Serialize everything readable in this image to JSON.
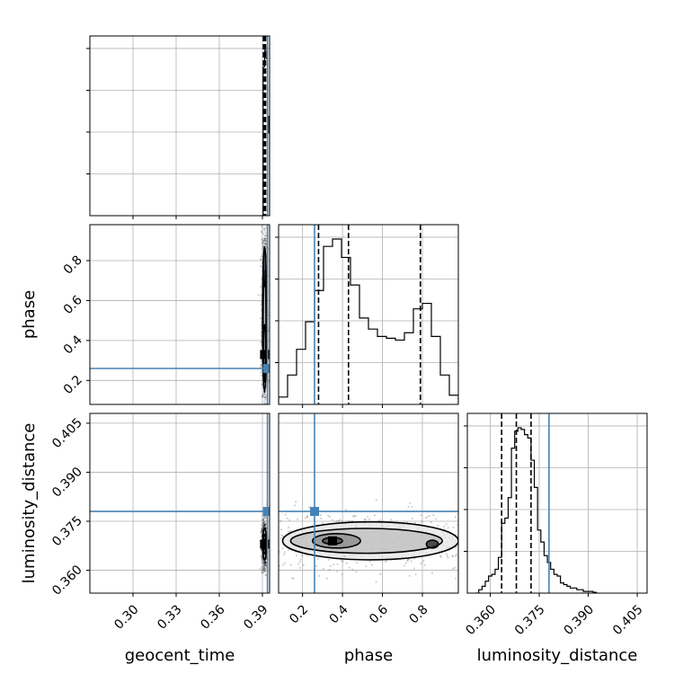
{
  "chart_data": {
    "type": "corner",
    "parameters": [
      "geocent_time",
      "phase",
      "luminosity_distance"
    ],
    "truth": {
      "geocent_time": 0.3935,
      "phase": 0.26,
      "luminosity_distance": 0.378
    },
    "axes": {
      "geocent_time": {
        "lim": [
          0.27,
          0.395
        ],
        "ticks": [
          0.3,
          0.33,
          0.36,
          0.39
        ],
        "tick_labels": [
          "0.30",
          "0.33",
          "0.36",
          "0.39"
        ]
      },
      "phase": {
        "lim": [
          0.08,
          0.98
        ],
        "ticks": [
          0.2,
          0.4,
          0.6,
          0.8
        ],
        "tick_labels": [
          "0.2",
          "0.4",
          "0.6",
          "0.8"
        ]
      },
      "luminosity_distance": {
        "lim": [
          0.353,
          0.408
        ],
        "ticks": [
          0.36,
          0.375,
          0.39,
          0.405
        ],
        "tick_labels": [
          "0.360",
          "0.375",
          "0.390",
          "0.405"
        ]
      }
    },
    "diagonal": [
      {
        "parameter": "geocent_time",
        "bin_edges": [
          0.3895,
          0.3905,
          0.3915,
          0.3925,
          0.3935,
          0.3945,
          0.395
        ],
        "counts": [
          0.0,
          0.9,
          1.0,
          0.95,
          0.6,
          0.5
        ],
        "quantiles": [
          0.3907,
          0.3915,
          0.3922
        ]
      },
      {
        "parameter": "phase",
        "bin_edges": [
          0.08,
          0.125,
          0.17,
          0.215,
          0.26,
          0.305,
          0.35,
          0.395,
          0.44,
          0.485,
          0.53,
          0.575,
          0.62,
          0.665,
          0.71,
          0.755,
          0.8,
          0.845,
          0.89,
          0.935,
          0.98
        ],
        "counts": [
          0.04,
          0.16,
          0.3,
          0.45,
          0.62,
          0.86,
          0.9,
          0.8,
          0.65,
          0.47,
          0.41,
          0.37,
          0.36,
          0.35,
          0.39,
          0.52,
          0.55,
          0.37,
          0.16,
          0.05
        ],
        "quantiles": [
          0.28,
          0.43,
          0.79
        ]
      },
      {
        "parameter": "luminosity_distance",
        "bin_edges": [
          0.3555,
          0.3565,
          0.3575,
          0.3585,
          0.3595,
          0.3605,
          0.3615,
          0.3625,
          0.3635,
          0.3645,
          0.3655,
          0.3665,
          0.3675,
          0.3685,
          0.3695,
          0.3705,
          0.3715,
          0.3725,
          0.3735,
          0.3745,
          0.3755,
          0.3765,
          0.3775,
          0.3785,
          0.3795,
          0.3805,
          0.3815,
          0.3825,
          0.3835,
          0.3845,
          0.3855,
          0.3865,
          0.3875,
          0.3885,
          0.3895,
          0.3905,
          0.3915,
          0.3925
        ],
        "counts": [
          0.0,
          0.02,
          0.04,
          0.07,
          0.1,
          0.11,
          0.14,
          0.21,
          0.41,
          0.44,
          0.56,
          0.85,
          0.95,
          0.97,
          0.96,
          0.93,
          0.91,
          0.78,
          0.62,
          0.37,
          0.3,
          0.22,
          0.18,
          0.14,
          0.11,
          0.1,
          0.06,
          0.05,
          0.04,
          0.03,
          0.03,
          0.02,
          0.02,
          0.01,
          0.01,
          0.01,
          0.005
        ],
        "quantiles": [
          0.3635,
          0.368,
          0.3725
        ]
      }
    ],
    "contour_panels": [
      {
        "x": "geocent_time",
        "y": "phase",
        "core": {
          "x": 0.3915,
          "y": 0.33
        },
        "contour_levels": [
          {
            "cx": 0.3915,
            "cy": 0.5,
            "rx": 0.0014,
            "ry": 0.36
          },
          {
            "cx": 0.3915,
            "cy": 0.47,
            "rx": 0.001,
            "ry": 0.28
          },
          {
            "cx": 0.3915,
            "cy": 0.36,
            "rx": 0.0008,
            "ry": 0.12
          },
          {
            "cx": 0.3915,
            "cy": 0.77,
            "rx": 0.0008,
            "ry": 0.1
          }
        ]
      },
      {
        "x": "geocent_time",
        "y": "luminosity_distance",
        "core": {
          "x": 0.3915,
          "y": 0.368
        },
        "contour_levels": [
          {
            "cx": 0.3915,
            "cy": 0.368,
            "rx": 0.0013,
            "ry": 0.0048
          },
          {
            "cx": 0.3915,
            "cy": 0.368,
            "rx": 0.0009,
            "ry": 0.003
          },
          {
            "cx": 0.3915,
            "cy": 0.368,
            "rx": 0.0005,
            "ry": 0.0016
          }
        ]
      },
      {
        "x": "phase",
        "y": "luminosity_distance",
        "core": {
          "x": 0.35,
          "y": 0.369
        },
        "contour_levels": [
          {
            "cx": 0.54,
            "cy": 0.369,
            "rx": 0.44,
            "ry": 0.0058
          },
          {
            "cx": 0.52,
            "cy": 0.369,
            "rx": 0.38,
            "ry": 0.0038
          },
          {
            "cx": 0.37,
            "cy": 0.369,
            "rx": 0.12,
            "ry": 0.0022
          },
          {
            "cx": 0.35,
            "cy": 0.369,
            "rx": 0.05,
            "ry": 0.001
          },
          {
            "cx": 0.85,
            "cy": 0.368,
            "rx": 0.03,
            "ry": 0.0012
          }
        ]
      }
    ],
    "truth_color": "#4682b4",
    "grid": true
  }
}
